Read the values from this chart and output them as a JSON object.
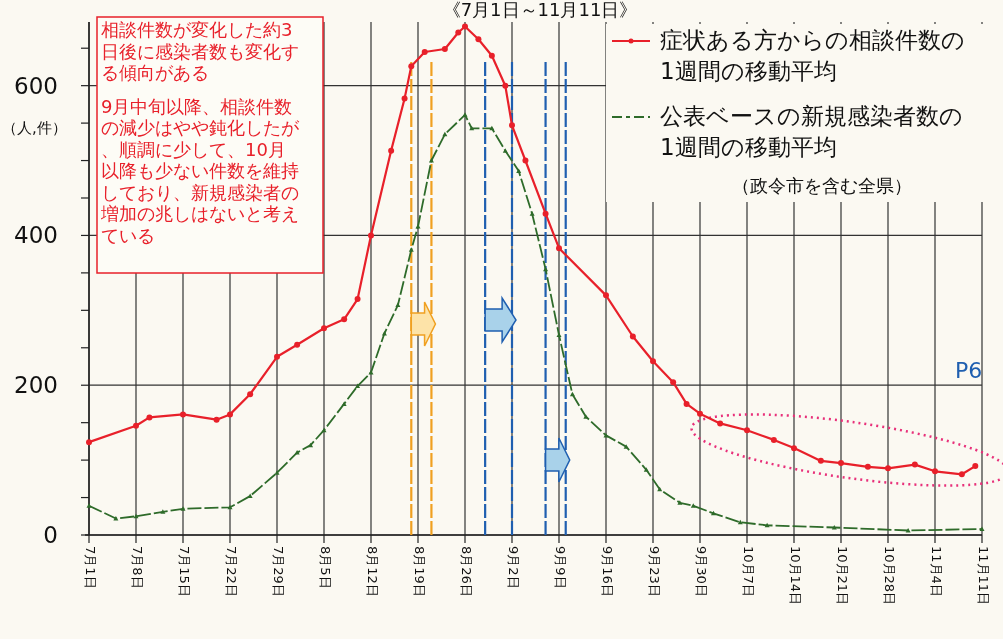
{
  "chart_data": {
    "type": "line",
    "title": "《7月1日～11月11日》",
    "ylabel": "（人,件）",
    "xlim": [
      "--07-01",
      "--11-11"
    ],
    "ylim": [
      0,
      685
    ],
    "xticks": [
      {
        "value": "--07-01",
        "label": "7月1日"
      },
      {
        "value": "--07-08",
        "label": "7月8日"
      },
      {
        "value": "--07-15",
        "label": "7月15日"
      },
      {
        "value": "--07-22",
        "label": "7月22日"
      },
      {
        "value": "--07-29",
        "label": "7月29日"
      },
      {
        "value": "--08-05",
        "label": "8月5日"
      },
      {
        "value": "--08-12",
        "label": "8月12日"
      },
      {
        "value": "--08-19",
        "label": "8月19日"
      },
      {
        "value": "--08-26",
        "label": "8月26日"
      },
      {
        "value": "--09-02",
        "label": "9月2日"
      },
      {
        "value": "--09-09",
        "label": "9月9日"
      },
      {
        "value": "--09-16",
        "label": "9月16日"
      },
      {
        "value": "--09-23",
        "label": "9月23日"
      },
      {
        "value": "--09-30",
        "label": "9月30日"
      },
      {
        "value": "--10-07",
        "label": "10月7日"
      },
      {
        "value": "--10-14",
        "label": "10月14日"
      },
      {
        "value": "--10-21",
        "label": "10月21日"
      },
      {
        "value": "--10-28",
        "label": "10月28日"
      },
      {
        "value": "--11-04",
        "label": "11月4日"
      },
      {
        "value": "--11-11",
        "label": "11月11日"
      }
    ],
    "yticks": [
      0,
      {
        "value": 50,
        "label": null
      },
      {
        "value": 100,
        "label": null
      },
      {
        "value": 150,
        "label": null
      },
      200,
      {
        "value": 250,
        "label": null
      },
      {
        "value": 300,
        "label": null
      },
      {
        "value": 350,
        "label": null
      },
      400,
      {
        "value": 450,
        "label": null
      },
      {
        "value": 500,
        "label": null
      },
      {
        "value": 550,
        "label": null
      },
      600,
      {
        "value": 650,
        "label": null
      }
    ],
    "grid": true,
    "legend": "top right",
    "series": [
      {
        "name": "症状ある方からの相談件数の1週間の移動平均",
        "color": "#e8202a",
        "marker": "circle",
        "line_style": "solid",
        "x": [
          "--07-01",
          "--07-08",
          "--07-10",
          "--07-15",
          "--07-20",
          "--07-22",
          "--07-25",
          "--07-29",
          "--08-01",
          "--08-05",
          "--08-08",
          "--08-10",
          "--08-12",
          "--08-15",
          "--08-17",
          "--08-18",
          "--08-20",
          "--08-23",
          "--08-25",
          "--08-26",
          "--08-28",
          "--08-30",
          "--09-01",
          "--09-02",
          "--09-04",
          "--09-07",
          "--09-09",
          "--09-16",
          "--09-20",
          "--09-23",
          "--09-26",
          "--09-28",
          "--09-30",
          "--10-03",
          "--10-07",
          "--10-11",
          "--10-14",
          "--10-18",
          "--10-21",
          "--10-25",
          "--10-28",
          "--11-01",
          "--11-04",
          "--11-08",
          "--11-10"
        ],
        "values": [
          124,
          146,
          157,
          161,
          154,
          161,
          188,
          238,
          254,
          276,
          288,
          315,
          400,
          513,
          583,
          626,
          645,
          649,
          671,
          679,
          662,
          640,
          600,
          547,
          500,
          429,
          383,
          320,
          265,
          232,
          204,
          175,
          162,
          149,
          140,
          127,
          116,
          99,
          96,
          91,
          89,
          94,
          85,
          81,
          92
        ]
      },
      {
        "name": "公表ベースの新規感染者数の1週間の移動平均",
        "color": "#2e6b2a",
        "marker": "triangle",
        "line_style": "dashed",
        "x": [
          "--07-01",
          "--07-05",
          "--07-08",
          "--07-12",
          "--07-15",
          "--07-22",
          "--07-25",
          "--07-29",
          "--08-01",
          "--08-03",
          "--08-05",
          "--08-08",
          "--08-10",
          "--08-12",
          "--08-14",
          "--08-16",
          "--08-18",
          "--08-19",
          "--08-21",
          "--08-23",
          "--08-26",
          "--08-27",
          "--08-30",
          "--09-01",
          "--09-03",
          "--09-05",
          "--09-07",
          "--09-09",
          "--09-11",
          "--09-13",
          "--09-16",
          "--09-19",
          "--09-22",
          "--09-24",
          "--09-27",
          "--09-29",
          "--10-02",
          "--10-06",
          "--10-10",
          "--10-20",
          "--10-31",
          "--11-11"
        ],
        "values": [
          39,
          22,
          25,
          31,
          35,
          37,
          52,
          83,
          110,
          120,
          140,
          175,
          199,
          217,
          269,
          307,
          381,
          412,
          500,
          535,
          561,
          543,
          543,
          513,
          486,
          429,
          355,
          267,
          188,
          158,
          133,
          118,
          87,
          61,
          43,
          39,
          29,
          17,
          13,
          10,
          6,
          8
        ]
      }
    ],
    "ref_lines": [
      {
        "axis": "x",
        "value": "--08-18",
        "color": "#f0a020",
        "line_style": "dashed"
      },
      {
        "axis": "x",
        "value": "--08-21",
        "color": "#f0a020",
        "line_style": "dashed"
      },
      {
        "axis": "x",
        "value": "--08-29",
        "color": "#1f5fb0",
        "line_style": "dashed"
      },
      {
        "axis": "x",
        "value": "--09-02",
        "color": "#1f5fb0",
        "line_style": "dashed"
      },
      {
        "axis": "x",
        "value": "--09-07",
        "color": "#1f5fb0",
        "line_style": "dashed"
      },
      {
        "axis": "x",
        "value": "--09-10",
        "color": "#1f5fb0",
        "line_style": "dashed"
      }
    ],
    "annotations": [
      "相談件数が変化した約3日後に感染者数も変化する傾向がある",
      "9月中旬以降、相談件数の減少はやや鈍化したが、順調に少して、10月以降も少ない件数を維持しており、新規感染者の増加の兆しはないと考えている",
      "（政令市を含む全県）",
      "P6"
    ]
  }
}
